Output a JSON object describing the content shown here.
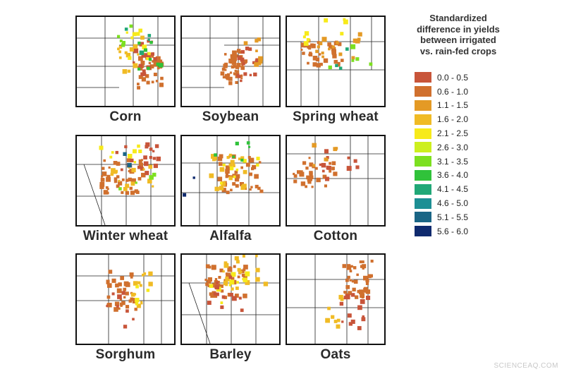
{
  "legend": {
    "title_lines": [
      "Standardized",
      "difference in yields",
      "between irrigated",
      "vs. rain-fed crops"
    ],
    "classes": [
      {
        "label": "0.0 - 0.5",
        "color": "#c8553a"
      },
      {
        "label": "0.6 - 1.0",
        "color": "#d0702e"
      },
      {
        "label": "1.1 - 1.5",
        "color": "#e49a25"
      },
      {
        "label": "1.6 - 2.0",
        "color": "#f0bb25"
      },
      {
        "label": "2.1 - 2.5",
        "color": "#f7ea1a"
      },
      {
        "label": "2.6 - 3.0",
        "color": "#cdef1e"
      },
      {
        "label": "3.1 - 3.5",
        "color": "#7de020"
      },
      {
        "label": "3.6 - 4.0",
        "color": "#30c23a"
      },
      {
        "label": "4.1 - 4.5",
        "color": "#21a877"
      },
      {
        "label": "4.6 - 5.0",
        "color": "#1d8f94"
      },
      {
        "label": "5.1 - 5.5",
        "color": "#1a6585"
      },
      {
        "label": "5.6 - 6.0",
        "color": "#0f2a6e"
      }
    ]
  },
  "panels": [
    {
      "id": "corn",
      "caption": "Corn",
      "region": "central-plains",
      "clusters": [
        {
          "color_index": 1,
          "count": 40
        },
        {
          "color_index": 0,
          "count": 18
        },
        {
          "color_index": 3,
          "count": 14
        },
        {
          "color_index": 4,
          "count": 10
        },
        {
          "color_index": 7,
          "count": 8
        },
        {
          "color_index": 6,
          "count": 6
        },
        {
          "color_index": 8,
          "count": 4
        }
      ]
    },
    {
      "id": "soybean",
      "caption": "Soybean",
      "region": "central-plains",
      "clusters": [
        {
          "color_index": 1,
          "count": 45
        },
        {
          "color_index": 0,
          "count": 15
        },
        {
          "color_index": 2,
          "count": 8
        }
      ]
    },
    {
      "id": "spring-wheat",
      "caption": "Spring wheat",
      "region": "northwest",
      "clusters": [
        {
          "color_index": 1,
          "count": 35
        },
        {
          "color_index": 2,
          "count": 15
        },
        {
          "color_index": 4,
          "count": 8
        },
        {
          "color_index": 6,
          "count": 5
        },
        {
          "color_index": 8,
          "count": 3
        }
      ]
    },
    {
      "id": "winter-wheat",
      "caption": "Winter wheat",
      "region": "west",
      "clusters": [
        {
          "color_index": 1,
          "count": 45
        },
        {
          "color_index": 0,
          "count": 20
        },
        {
          "color_index": 3,
          "count": 15
        },
        {
          "color_index": 4,
          "count": 8
        },
        {
          "color_index": 6,
          "count": 4
        },
        {
          "color_index": 10,
          "count": 2
        }
      ]
    },
    {
      "id": "alfalfa",
      "caption": "Alfalfa",
      "region": "west-central",
      "clusters": [
        {
          "color_index": 1,
          "count": 45
        },
        {
          "color_index": 3,
          "count": 20
        },
        {
          "color_index": 4,
          "count": 8
        },
        {
          "color_index": 7,
          "count": 6
        },
        {
          "color_index": 11,
          "count": 2
        }
      ]
    },
    {
      "id": "cotton",
      "caption": "Cotton",
      "region": "south",
      "clusters": [
        {
          "color_index": 1,
          "count": 35
        },
        {
          "color_index": 0,
          "count": 12
        },
        {
          "color_index": 2,
          "count": 6
        }
      ]
    },
    {
      "id": "sorghum",
      "caption": "Sorghum",
      "region": "south-central",
      "clusters": [
        {
          "color_index": 1,
          "count": 35
        },
        {
          "color_index": 3,
          "count": 12
        },
        {
          "color_index": 0,
          "count": 8
        },
        {
          "color_index": 4,
          "count": 4
        }
      ]
    },
    {
      "id": "barley",
      "caption": "Barley",
      "region": "west",
      "clusters": [
        {
          "color_index": 1,
          "count": 50
        },
        {
          "color_index": 3,
          "count": 20
        },
        {
          "color_index": 4,
          "count": 10
        },
        {
          "color_index": 0,
          "count": 12
        }
      ]
    },
    {
      "id": "oats",
      "caption": "Oats",
      "region": "north-central",
      "clusters": [
        {
          "color_index": 1,
          "count": 40
        },
        {
          "color_index": 0,
          "count": 15
        },
        {
          "color_index": 3,
          "count": 8
        }
      ]
    }
  ],
  "watermark": "SCIENCEAQ.COM"
}
